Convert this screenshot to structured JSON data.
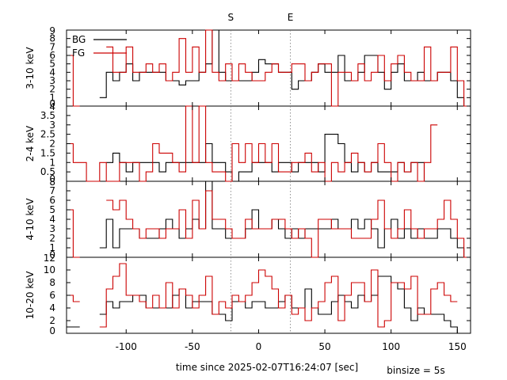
{
  "chart_data": {
    "type": "line",
    "xlabel": "time since 2025-02-07T16:24:07 [sec]",
    "binsize_label": "binsize = 5s",
    "xlim": [
      -145,
      160
    ],
    "x_ticks": [
      -100,
      -50,
      0,
      50,
      100,
      150
    ],
    "x_tick_labels": [
      "-100",
      "-50",
      "0",
      "50",
      "100",
      "150"
    ],
    "markers": [
      {
        "label": "S",
        "x": -21
      },
      {
        "label": "E",
        "x": 24
      }
    ],
    "legend": [
      {
        "name": "BG",
        "color": "#000000"
      },
      {
        "name": "FG",
        "color": "#cc0000"
      }
    ],
    "legend_position": "top-left",
    "bin_start": -145,
    "bin_width": 5,
    "panels": [
      {
        "ylabel": "3-10 keV",
        "ylim": [
          0,
          9
        ],
        "y_ticks": [
          0,
          1,
          2,
          3,
          4,
          5,
          6,
          7,
          8,
          9
        ],
        "y_tick_labels": [
          "0",
          "1",
          "2",
          "3",
          "4",
          "5",
          "6",
          "7",
          "8",
          "9"
        ],
        "series": [
          {
            "name": "BG",
            "values": [
              null,
              null,
              null,
              null,
              null,
              1,
              4,
              3,
              4,
              5,
              3,
              4,
              4,
              4,
              4,
              3,
              3,
              2.5,
              3,
              3,
              4,
              5,
              9,
              4,
              3,
              3,
              3,
              3,
              4,
              5.5,
              5,
              5,
              4,
              4,
              2,
              3,
              3,
              4,
              5,
              4,
              4,
              6,
              3,
              3,
              4,
              6,
              6,
              4,
              2,
              4,
              5,
              3,
              3,
              4,
              3,
              3,
              4,
              4,
              3,
              1,
              0
            ]
          },
          {
            "name": "FG",
            "values": [
              6,
              0,
              null,
              null,
              null,
              null,
              7,
              4,
              4,
              7,
              4,
              4,
              5,
              4,
              5,
              3,
              4,
              8,
              4,
              7,
              4,
              9,
              4,
              3,
              5,
              3,
              5,
              4,
              3,
              3,
              4,
              5,
              4,
              4,
              5,
              5,
              3,
              4,
              5,
              5,
              0,
              4,
              4,
              3,
              5,
              3,
              4,
              6,
              3,
              5,
              6,
              4,
              3,
              3,
              7,
              3,
              4,
              4,
              7,
              3,
              0
            ]
          }
        ]
      },
      {
        "ylabel": "2-4 keV",
        "ylim": [
          0,
          4
        ],
        "y_ticks": [
          0,
          0.5,
          1,
          1.5,
          2,
          2.5,
          3,
          3.5,
          4
        ],
        "y_tick_labels": [
          "0",
          "0.5",
          "1",
          "1.5",
          "2",
          "2.5",
          "3",
          "3.5",
          "4"
        ],
        "series": [
          {
            "name": "BG",
            "values": [
              null,
              null,
              null,
              null,
              null,
              null,
              1,
              1.5,
              1,
              0.5,
              1,
              1,
              1,
              1,
              0.5,
              1,
              1,
              1,
              1,
              1,
              1,
              2,
              1,
              1,
              0.5,
              0,
              0.5,
              0.5,
              1,
              1,
              1,
              0.5,
              1,
              1,
              0.5,
              1,
              1,
              1,
              0.5,
              2.5,
              2.5,
              2,
              1,
              0.5,
              1,
              0.5,
              1,
              0.5,
              0.5,
              0.5,
              1,
              0.5,
              1,
              1,
              0,
              null,
              null,
              null,
              null,
              null,
              null
            ]
          },
          {
            "name": "FG",
            "values": [
              2,
              1,
              1,
              0,
              0,
              1,
              0,
              0,
              1,
              1,
              1,
              0,
              0.5,
              2,
              1.5,
              1.5,
              1,
              0.5,
              4,
              1,
              4,
              1,
              0.5,
              0.5,
              0,
              2,
              1,
              2,
              1,
              2,
              1,
              2,
              0.5,
              0.5,
              1,
              1,
              1.5,
              0.5,
              1,
              0,
              1,
              0.5,
              1,
              1.5,
              1,
              0.5,
              1,
              2,
              1,
              0,
              1,
              0.5,
              1,
              0,
              1,
              3,
              null,
              null,
              null,
              null,
              null
            ]
          }
        ]
      },
      {
        "ylabel": "4-10 keV",
        "ylim": [
          0,
          8
        ],
        "y_ticks": [
          0,
          1,
          2,
          3,
          4,
          5,
          6,
          7,
          8
        ],
        "y_tick_labels": [
          "0",
          "1",
          "2",
          "3",
          "4",
          "5",
          "6",
          "7",
          "8"
        ],
        "series": [
          {
            "name": "BG",
            "values": [
              null,
              null,
              null,
              null,
              null,
              1,
              4,
              1,
              3,
              3,
              3,
              2,
              2,
              2,
              3,
              4,
              3,
              2,
              3,
              4,
              3,
              8,
              3,
              3,
              2,
              2,
              2,
              3,
              5,
              3,
              3,
              4,
              3,
              2,
              3,
              2,
              3,
              3,
              3,
              3,
              4,
              3,
              3,
              4,
              3,
              4,
              3,
              1,
              3,
              4,
              2,
              3,
              2,
              3,
              2,
              2,
              3,
              3,
              2,
              1,
              0
            ]
          },
          {
            "name": "FG",
            "values": [
              5,
              0,
              null,
              null,
              null,
              null,
              6,
              5,
              6,
              4,
              3,
              2,
              3,
              3,
              2,
              3,
              3,
              5,
              2,
              6,
              3,
              7,
              4,
              4,
              3,
              2,
              2,
              4,
              3,
              3,
              3,
              4,
              4,
              3,
              2,
              3,
              2,
              0,
              4,
              4,
              3,
              3,
              3,
              2,
              2,
              2,
              4,
              6,
              3,
              2,
              3,
              5,
              3,
              2,
              3,
              3,
              4,
              6,
              4,
              2,
              0
            ]
          }
        ]
      },
      {
        "ylabel": "10-20 keV",
        "ylim": [
          0,
          12
        ],
        "y_ticks": [
          0,
          2,
          4,
          6,
          8,
          10,
          12
        ],
        "y_tick_labels": [
          "0",
          "2",
          "4",
          "6",
          "8",
          "10",
          "12"
        ],
        "series": [
          {
            "name": "BG",
            "values": [
              1,
              1,
              null,
              null,
              null,
              3,
              5,
              4,
              5,
              5,
              6,
              6,
              4,
              4,
              4,
              4,
              6,
              7,
              4,
              5,
              5,
              5,
              3,
              3,
              2,
              5,
              5,
              4,
              5,
              5,
              4,
              4,
              5,
              6,
              4,
              4,
              7,
              4,
              3,
              3,
              5,
              6,
              5,
              4,
              6,
              5,
              6,
              9,
              9,
              8,
              7,
              4,
              2,
              4,
              3,
              3,
              3,
              2,
              1,
              0,
              null
            ]
          },
          {
            "name": "FG",
            "values": [
              6,
              5,
              null,
              null,
              null,
              1,
              7,
              9,
              11,
              6,
              6,
              5,
              4,
              6,
              4,
              8,
              4,
              7,
              6,
              4,
              6,
              9,
              3,
              5,
              4,
              6,
              5,
              6,
              8,
              10,
              9,
              7,
              4,
              6,
              3,
              4,
              2,
              4,
              5,
              8,
              9,
              2,
              6,
              8,
              8,
              5,
              10,
              1,
              2,
              8,
              8,
              7,
              9,
              3,
              3,
              7,
              8,
              6,
              5,
              null,
              null
            ]
          }
        ]
      }
    ]
  }
}
